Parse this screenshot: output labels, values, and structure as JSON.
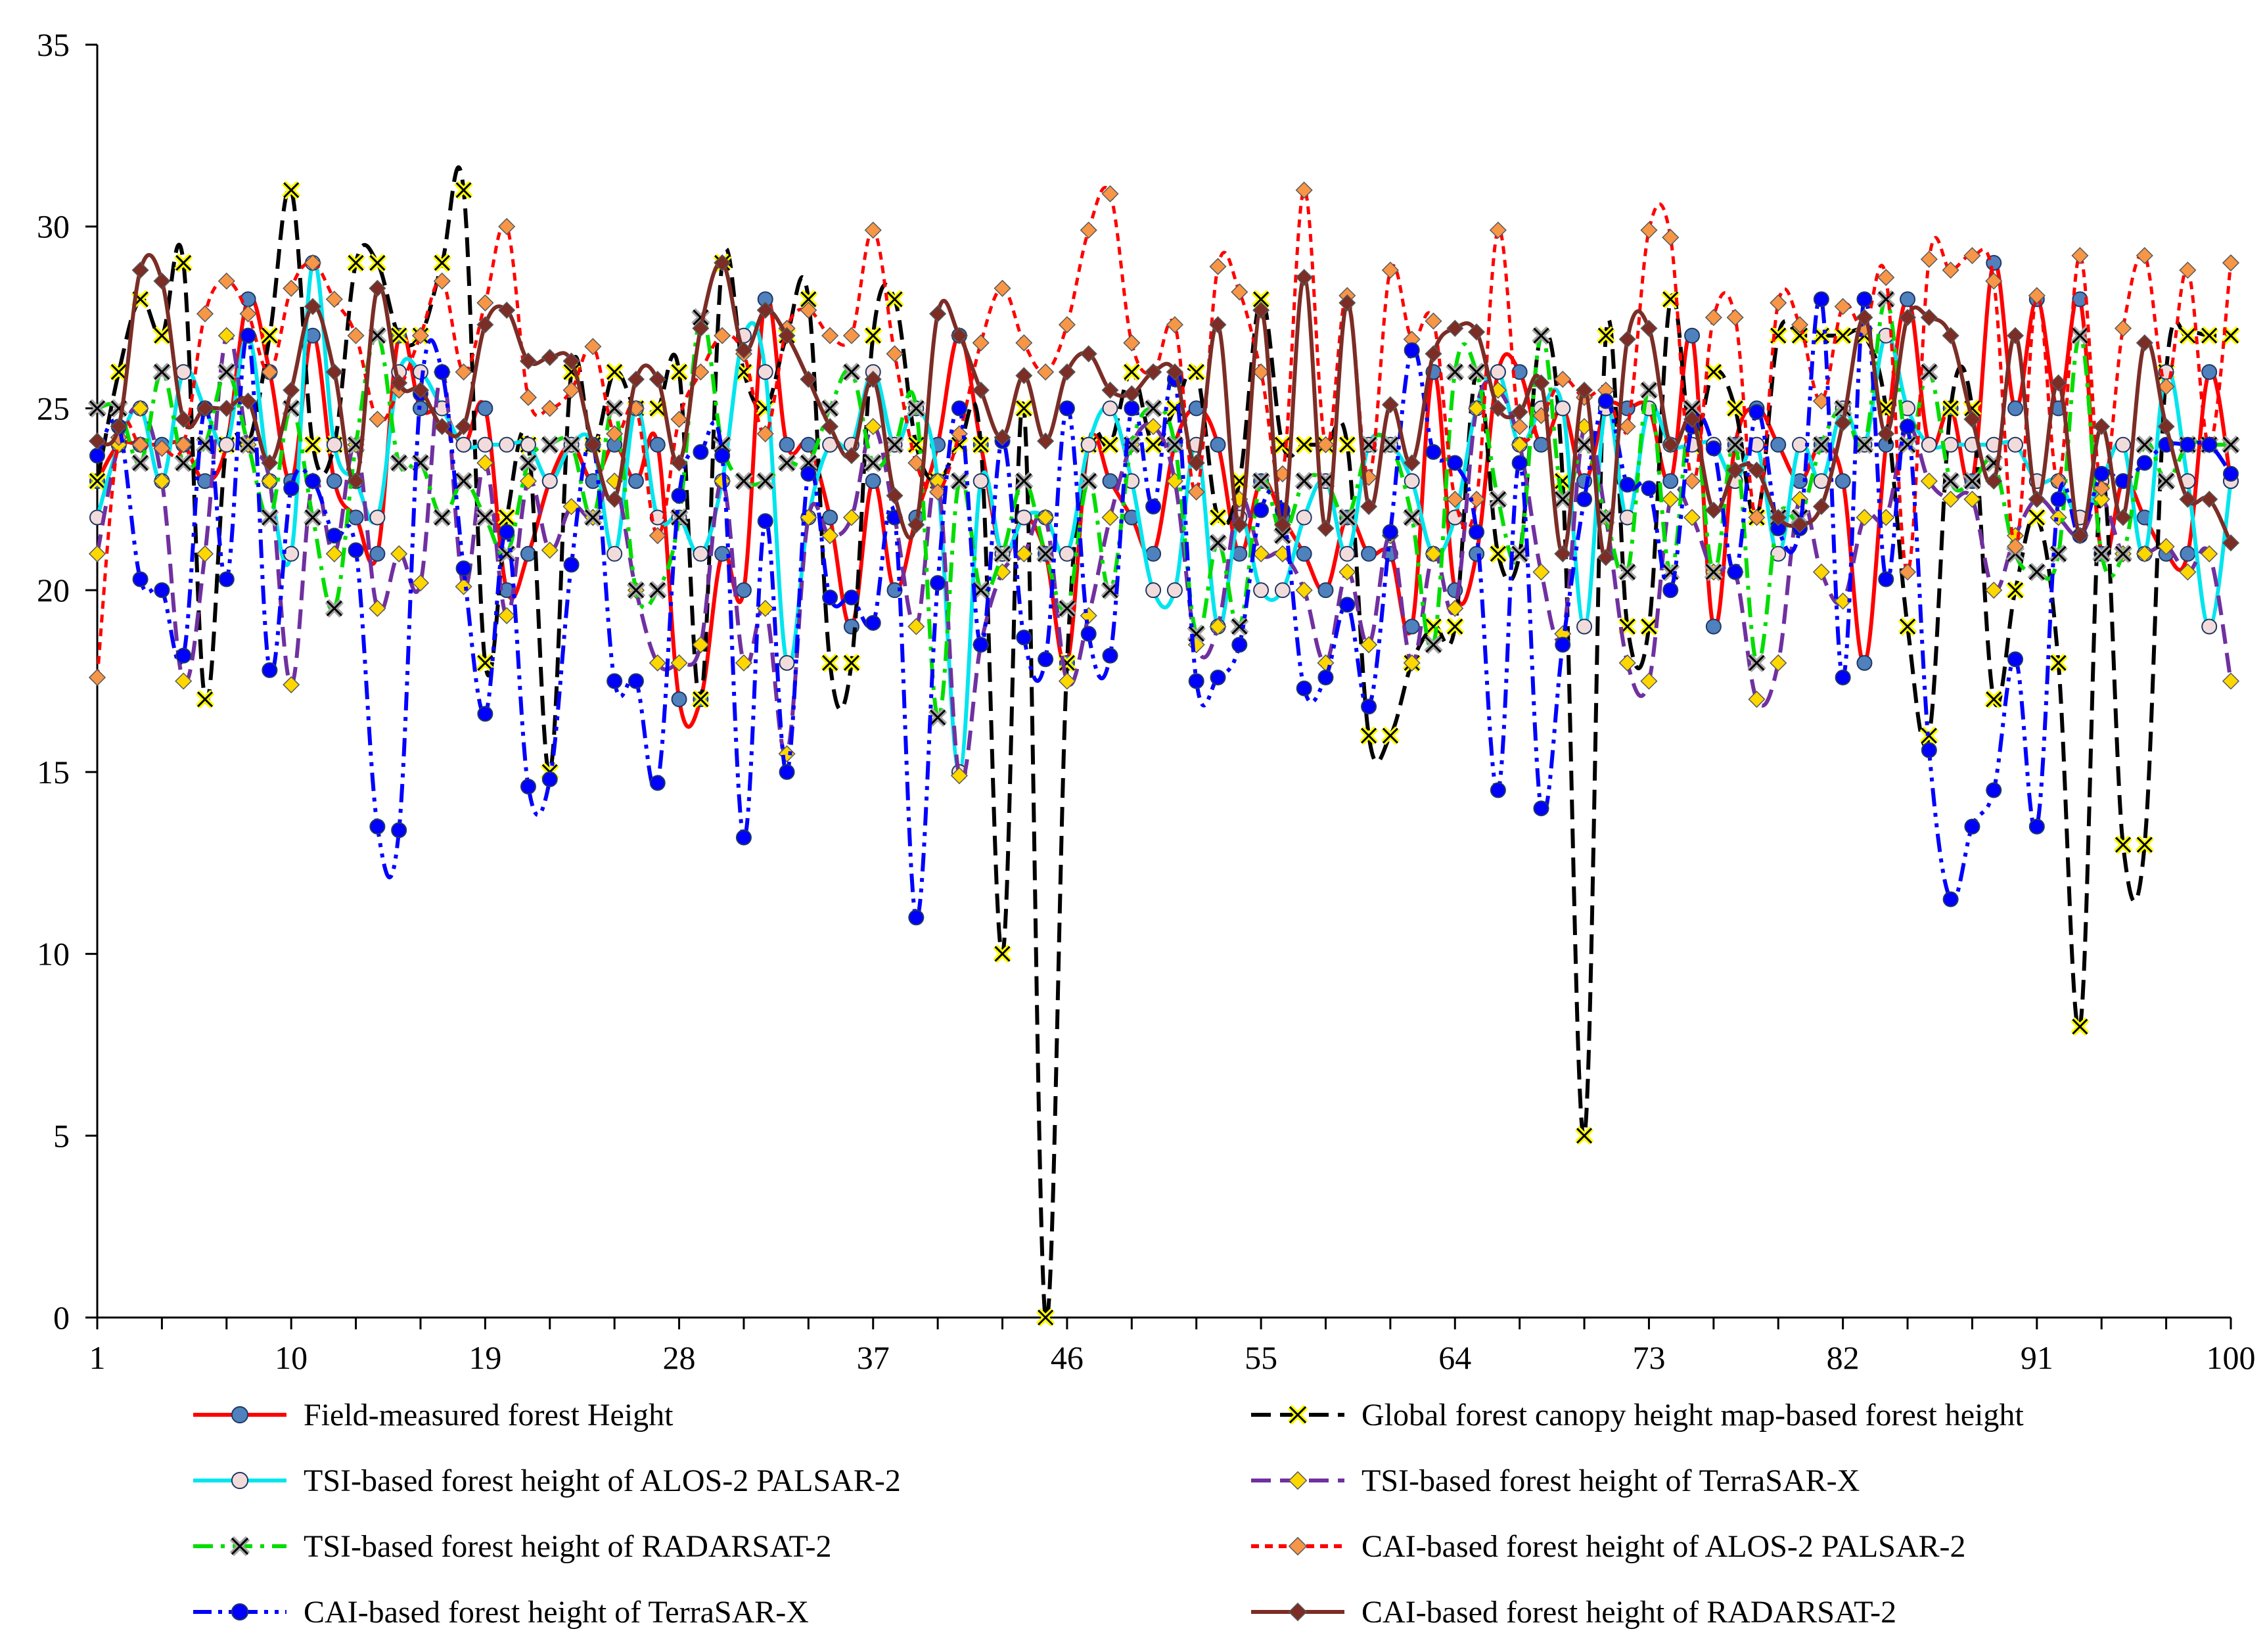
{
  "chart_data": {
    "type": "line",
    "title": "",
    "xlabel": "",
    "ylabel": "",
    "ylim": [
      0,
      35
    ],
    "yticks": [
      0,
      5,
      10,
      15,
      20,
      25,
      30,
      35
    ],
    "xlim": [
      1,
      100
    ],
    "xticks": [
      1,
      10,
      19,
      28,
      37,
      46,
      55,
      64,
      73,
      82,
      91,
      100
    ],
    "grid": false,
    "legend_position": "bottom",
    "series": [
      {
        "name": "Field-measured forest Height",
        "color": "#ff0000",
        "dash": "solid",
        "marker": "circle",
        "marker_fill": "#4f81bd",
        "values": [
          23.0,
          24.0,
          24.0,
          24.0,
          24.0,
          23.0,
          24.0,
          28.0,
          26.0,
          23.0,
          27.0,
          23.0,
          22.0,
          21.0,
          27.0,
          25.0,
          25.0,
          24.0,
          25.0,
          20.0,
          21.0,
          23.0,
          24.0,
          23.0,
          24.0,
          23.0,
          24.0,
          17.0,
          17.0,
          21.0,
          20.0,
          28.0,
          24.0,
          24.0,
          22.0,
          19.0,
          23.0,
          20.0,
          22.0,
          24.0,
          27.0,
          24.0,
          21.0,
          22.0,
          21.0,
          18.0,
          24.0,
          23.0,
          22.0,
          21.0,
          24.0,
          25.0,
          24.0,
          21.0,
          23.0,
          22.0,
          21.0,
          20.0,
          22.0,
          21.0,
          21.0,
          19.0,
          26.0,
          20.0,
          21.0,
          26.0,
          26.0,
          24.0,
          25.0,
          23.0,
          25.0,
          25.0,
          25.0,
          23.0,
          27.0,
          19.0,
          24.0,
          25.0,
          24.0,
          23.0,
          24.0,
          23.0,
          18.0,
          24.0,
          28.0,
          24.0,
          25.0,
          23.0,
          29.0,
          25.0,
          28.0,
          25.0,
          28.0,
          21.0,
          23.0,
          22.0,
          21.0,
          21.0,
          26.0,
          23.0
        ]
      },
      {
        "name": "Global forest canopy height map-based forest height",
        "color": "#000000",
        "dash": "dash",
        "marker": "x",
        "marker_fill": "#ffff00",
        "values": [
          23.0,
          26.0,
          28.0,
          27.0,
          29.0,
          17.0,
          24.0,
          24.0,
          27.0,
          31.0,
          24.0,
          24.0,
          29.0,
          29.0,
          27.0,
          27.0,
          29.0,
          31.0,
          18.0,
          22.0,
          24.0,
          15.0,
          26.0,
          24.0,
          26.0,
          25.0,
          25.0,
          26.0,
          17.0,
          29.0,
          26.0,
          25.0,
          27.0,
          28.0,
          18.0,
          18.0,
          27.0,
          28.0,
          24.0,
          23.0,
          24.0,
          24.0,
          10.0,
          25.0,
          0.0,
          18.0,
          24.0,
          24.0,
          26.0,
          24.0,
          25.0,
          26.0,
          22.0,
          23.0,
          28.0,
          24.0,
          24.0,
          24.0,
          24.0,
          16.0,
          16.0,
          18.0,
          19.0,
          19.0,
          26.0,
          21.0,
          21.0,
          27.0,
          23.0,
          5.0,
          27.0,
          19.0,
          19.0,
          28.0,
          24.0,
          26.0,
          25.0,
          22.0,
          27.0,
          27.0,
          27.0,
          27.0,
          27.0,
          25.0,
          19.0,
          16.0,
          25.0,
          25.0,
          17.0,
          20.0,
          22.0,
          18.0,
          8.0,
          23.0,
          13.0,
          13.0,
          26.0,
          27.0,
          27.0,
          27.0
        ]
      },
      {
        "name": "TSI-based forest height of ALOS-2 PALSAR-2",
        "color": "#00e5ee",
        "dash": "solid",
        "marker": "circle",
        "marker_fill": "#f2dcdb",
        "values": [
          22.0,
          24.0,
          25.0,
          23.0,
          26.0,
          25.0,
          24.0,
          27.0,
          23.0,
          21.0,
          29.0,
          24.0,
          23.0,
          22.0,
          26.0,
          26.0,
          25.0,
          24.0,
          24.0,
          24.0,
          24.0,
          23.0,
          24.0,
          24.0,
          21.0,
          25.0,
          22.0,
          22.0,
          21.0,
          23.0,
          27.0,
          26.0,
          18.0,
          22.0,
          24.0,
          24.0,
          26.0,
          24.0,
          25.0,
          23.0,
          15.0,
          23.0,
          21.0,
          22.0,
          22.0,
          21.0,
          24.0,
          25.0,
          23.0,
          20.0,
          20.0,
          24.0,
          19.0,
          22.0,
          20.0,
          20.0,
          22.0,
          23.0,
          21.0,
          24.0,
          24.0,
          23.0,
          21.0,
          22.0,
          25.0,
          26.0,
          24.0,
          25.0,
          25.0,
          19.0,
          25.0,
          22.0,
          25.0,
          24.0,
          24.0,
          24.0,
          23.0,
          24.0,
          21.0,
          24.0,
          23.0,
          25.0,
          24.0,
          27.0,
          25.0,
          24.0,
          24.0,
          24.0,
          24.0,
          24.0,
          23.0,
          23.0,
          22.0,
          23.0,
          24.0,
          21.0,
          26.0,
          23.0,
          19.0,
          23.0
        ]
      },
      {
        "name": "TSI-based forest height of TerraSAR-X",
        "color": "#7030a0",
        "dash": "dash",
        "marker": "diamond",
        "marker_fill": "#ffd700",
        "values": [
          21.0,
          24.0,
          25.0,
          23.0,
          17.5,
          21.0,
          27.0,
          24.0,
          23.0,
          17.4,
          23.0,
          21.0,
          24.0,
          19.5,
          21.0,
          20.2,
          26.0,
          20.1,
          23.5,
          19.3,
          23.0,
          21.1,
          22.3,
          22.0,
          23.0,
          20.0,
          18.0,
          18.0,
          18.5,
          23.0,
          18.0,
          19.5,
          15.5,
          22.0,
          21.5,
          22.0,
          24.5,
          22.0,
          19.0,
          23.0,
          14.9,
          18.5,
          20.5,
          21.0,
          22.0,
          17.5,
          19.3,
          22.0,
          24.0,
          24.5,
          23.0,
          18.5,
          19.0,
          22.5,
          21.0,
          21.0,
          20.0,
          18.0,
          20.5,
          18.5,
          21.5,
          18.0,
          21.0,
          19.5,
          25.0,
          25.5,
          24.0,
          20.5,
          18.8,
          24.5,
          22.0,
          18.0,
          17.5,
          22.5,
          22.0,
          20.5,
          20.5,
          17.0,
          18.0,
          22.5,
          20.5,
          19.7,
          22.0,
          22.0,
          24.5,
          23.0,
          22.5,
          22.5,
          20.0,
          21.5,
          22.5,
          22.0,
          21.5,
          22.5,
          21.0,
          21.0,
          21.2,
          20.5,
          21.0,
          17.5
        ]
      },
      {
        "name": "TSI-based forest height of RADARSAT-2",
        "color": "#00dd00",
        "dash": "dashdot",
        "marker": "x",
        "marker_fill": "#a6a6a6",
        "values": [
          25.0,
          25.0,
          23.5,
          26.0,
          23.5,
          24.0,
          26.0,
          24.0,
          22.0,
          25.0,
          22.0,
          19.5,
          24.0,
          27.0,
          23.5,
          23.5,
          22.0,
          23.0,
          22.0,
          21.0,
          23.5,
          24.0,
          24.0,
          22.0,
          25.0,
          20.0,
          20.0,
          22.0,
          27.5,
          24.0,
          23.0,
          23.0,
          23.5,
          23.5,
          25.0,
          26.0,
          23.5,
          24.0,
          25.0,
          16.5,
          23.0,
          20.0,
          21.0,
          23.0,
          21.0,
          19.5,
          23.0,
          20.0,
          24.0,
          25.0,
          24.0,
          18.8,
          21.3,
          19.0,
          23.0,
          21.5,
          23.0,
          23.0,
          22.0,
          24.0,
          24.0,
          22.0,
          18.5,
          26.0,
          26.0,
          22.5,
          21.0,
          27.0,
          22.5,
          24.0,
          22.0,
          20.5,
          25.5,
          20.5,
          25.0,
          20.5,
          24.0,
          18.0,
          22.0,
          22.0,
          24.0,
          25.0,
          24.0,
          28.0,
          24.0,
          26.0,
          23.0,
          23.0,
          23.5,
          21.0,
          20.5,
          21.0,
          27.0,
          21.0,
          21.0,
          24.0,
          23.0,
          24.0,
          24.0,
          24.0
        ]
      },
      {
        "name": "CAI-based forest height of ALOS-2 PALSAR-2",
        "color": "#ff0000",
        "dash": "dot",
        "marker": "diamond",
        "marker_fill": "#f79646",
        "values": [
          17.6,
          24.2,
          24.0,
          23.9,
          24.0,
          27.6,
          28.5,
          27.6,
          26.0,
          28.3,
          29.0,
          28.0,
          27.0,
          24.7,
          25.5,
          27.0,
          28.5,
          26.0,
          27.9,
          30.0,
          25.3,
          25.0,
          25.5,
          26.7,
          24.3,
          25.0,
          21.5,
          24.7,
          26.0,
          27.0,
          26.5,
          24.3,
          27.2,
          27.7,
          27.0,
          27.0,
          29.9,
          26.5,
          23.5,
          22.7,
          24.3,
          26.8,
          28.3,
          26.8,
          26.0,
          27.3,
          29.9,
          30.9,
          26.8,
          26.0,
          27.3,
          22.7,
          28.9,
          28.2,
          26.0,
          23.2,
          31.0,
          24.0,
          28.1,
          23.1,
          28.8,
          26.9,
          27.4,
          22.5,
          22.5,
          29.9,
          24.5,
          24.8,
          25.8,
          25.3,
          25.5,
          24.5,
          29.9,
          29.7,
          23.0,
          27.5,
          27.5,
          22.0,
          27.9,
          27.3,
          25.2,
          27.8,
          27.2,
          28.6,
          20.5,
          29.1,
          28.8,
          29.2,
          28.5,
          21.2,
          28.1,
          23.0,
          29.2,
          22.8,
          27.2,
          29.2,
          25.6,
          28.8,
          24.0,
          29.0
        ]
      },
      {
        "name": "CAI-based forest height of TerraSAR-X",
        "color": "#0000ff",
        "dash": "dashdotdot",
        "marker": "circle",
        "marker_fill": "#0000ff",
        "values": [
          23.7,
          24.5,
          20.3,
          20.0,
          18.2,
          25.0,
          20.3,
          27.0,
          17.8,
          22.8,
          23.0,
          21.5,
          21.1,
          13.5,
          13.4,
          25.4,
          26.0,
          20.6,
          16.6,
          21.6,
          14.6,
          14.8,
          20.7,
          24.0,
          17.5,
          17.5,
          14.7,
          22.6,
          23.8,
          23.7,
          13.2,
          21.9,
          15.0,
          23.2,
          19.8,
          19.8,
          19.1,
          22.0,
          11.0,
          20.2,
          25.0,
          18.5,
          24.1,
          18.7,
          18.1,
          25.0,
          18.8,
          18.2,
          25.0,
          22.3,
          25.8,
          17.5,
          17.6,
          18.5,
          22.2,
          22.2,
          17.3,
          17.6,
          19.6,
          16.8,
          21.6,
          26.6,
          23.8,
          23.5,
          21.6,
          14.5,
          23.5,
          14.0,
          18.5,
          22.5,
          25.2,
          22.9,
          22.8,
          20.0,
          24.5,
          23.9,
          20.5,
          24.9,
          21.7,
          21.7,
          28.0,
          17.6,
          28.0,
          20.3,
          24.5,
          15.6,
          11.5,
          13.5,
          14.5,
          18.1,
          13.5,
          22.5,
          21.5,
          23.2,
          23.0,
          23.5,
          24.0,
          24.0,
          24.0,
          23.2
        ]
      },
      {
        "name": "CAI-based forest height of RADARSAT-2",
        "color": "#7b2d26",
        "dash": "solid",
        "marker": "diamond",
        "marker_fill": "#7b2d26",
        "values": [
          24.1,
          24.5,
          28.8,
          28.5,
          24.7,
          25.0,
          25.0,
          25.2,
          23.5,
          25.5,
          27.8,
          26.0,
          23.0,
          28.3,
          25.7,
          25.5,
          24.5,
          24.5,
          27.3,
          27.7,
          26.3,
          26.4,
          26.3,
          24.0,
          22.5,
          25.8,
          25.8,
          23.5,
          27.2,
          29.0,
          26.6,
          27.7,
          27.0,
          25.8,
          24.5,
          23.7,
          25.8,
          22.6,
          21.8,
          27.6,
          27.0,
          25.5,
          24.2,
          25.9,
          24.1,
          26.0,
          26.5,
          25.5,
          25.4,
          26.0,
          26.0,
          23.5,
          27.3,
          21.8,
          27.7,
          21.8,
          28.6,
          21.7,
          27.9,
          22.3,
          25.1,
          23.5,
          26.5,
          27.2,
          27.1,
          25.0,
          24.9,
          25.7,
          21.0,
          25.5,
          20.9,
          26.9,
          27.2,
          24.0,
          24.7,
          22.2,
          23.3,
          23.3,
          22.0,
          21.8,
          22.3,
          24.6,
          27.5,
          24.3,
          27.5,
          27.5,
          27.0,
          24.7,
          23.0,
          27.0,
          22.5,
          25.7,
          21.5,
          24.5,
          22.0,
          26.8,
          24.5,
          22.5,
          22.5,
          21.3
        ]
      }
    ]
  }
}
